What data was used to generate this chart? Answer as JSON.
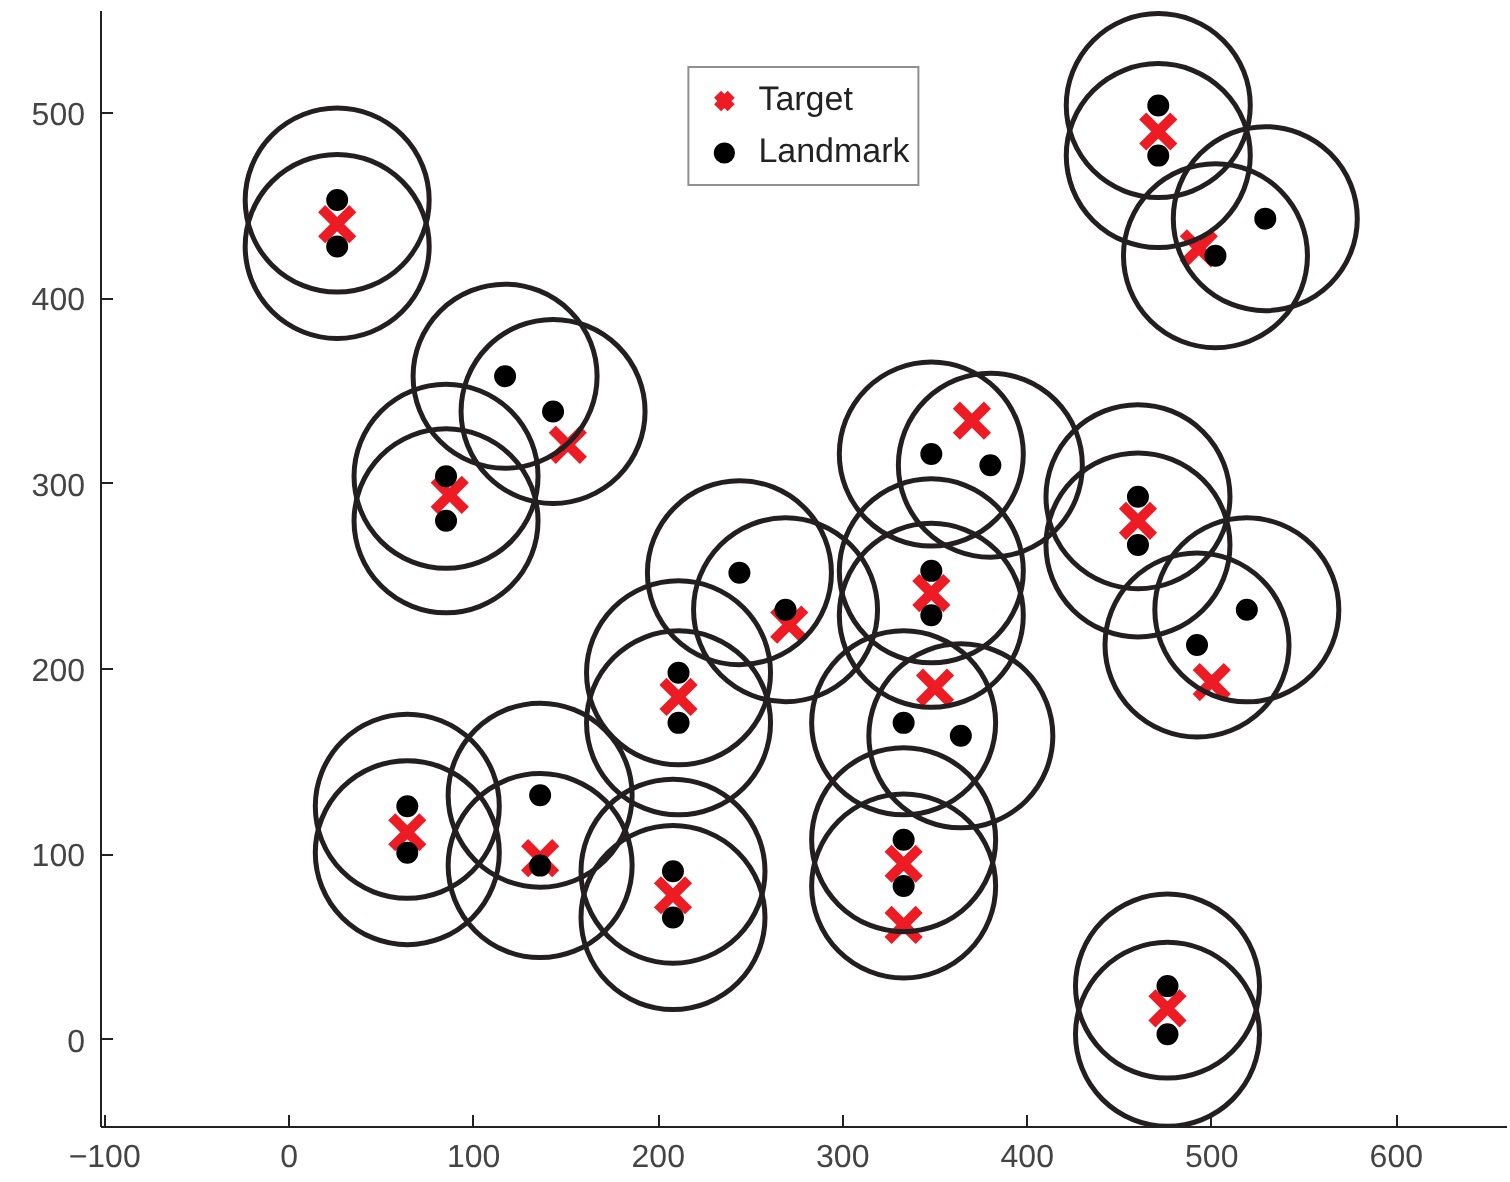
{
  "chart_data": {
    "type": "scatter",
    "xlim": [
      -102,
      660
    ],
    "ylim": [
      -47,
      555
    ],
    "xticks": [
      -100,
      0,
      100,
      200,
      300,
      400,
      500,
      600
    ],
    "yticks": [
      0,
      100,
      200,
      300,
      400,
      500
    ],
    "grid": false,
    "legend": "top",
    "series": [
      {
        "type": "bubble",
        "color": "#231f20",
        "x": [
          26,
          26,
          85,
          85,
          117,
          143,
          471,
          471,
          529,
          502,
          348,
          380,
          460,
          460,
          348,
          348,
          333,
          364,
          333,
          333,
          519,
          492,
          476,
          476,
          64,
          64,
          136,
          136,
          211,
          211,
          208,
          208,
          244,
          269
        ],
        "values": [
          453,
          428,
          304,
          280,
          358,
          339,
          504,
          477,
          443,
          423,
          316,
          310,
          293,
          267,
          253,
          229,
          171,
          164,
          108,
          83,
          232,
          213,
          29,
          3,
          126,
          101,
          132,
          94,
          198,
          171,
          91,
          66,
          252,
          232
        ],
        "sizes": [
          1,
          1,
          1,
          1,
          1,
          1,
          1,
          1,
          1,
          1,
          1,
          1,
          1,
          1,
          1,
          1,
          1,
          1,
          1,
          1,
          1,
          1,
          1,
          1,
          1,
          1,
          1,
          1,
          1,
          1,
          1,
          1,
          1,
          1
        ]
      },
      {
        "name": "Target",
        "color": "#ed1c24",
        "marker": "cross",
        "x": [
          26,
          87,
          151,
          471,
          493,
          370,
          460,
          348,
          350,
          333,
          333,
          500,
          476,
          64,
          136,
          211,
          208,
          271
        ],
        "values": [
          440,
          294,
          321,
          490,
          427,
          334,
          280,
          241,
          190,
          95,
          62,
          193,
          17,
          112,
          98,
          185,
          78,
          224
        ]
      },
      {
        "name": "Landmark",
        "color": "#000000",
        "marker": "circle",
        "x": [
          26,
          26,
          85,
          85,
          117,
          143,
          471,
          471,
          529,
          502,
          348,
          380,
          460,
          460,
          348,
          348,
          333,
          364,
          333,
          333,
          519,
          492,
          476,
          476,
          64,
          64,
          136,
          136,
          211,
          211,
          208,
          208,
          244,
          269
        ],
        "values": [
          453,
          428,
          304,
          280,
          358,
          339,
          504,
          477,
          443,
          423,
          316,
          310,
          293,
          267,
          253,
          229,
          171,
          164,
          108,
          83,
          232,
          213,
          29,
          3,
          126,
          101,
          132,
          94,
          198,
          171,
          91,
          66,
          252,
          232
        ]
      }
    ]
  }
}
